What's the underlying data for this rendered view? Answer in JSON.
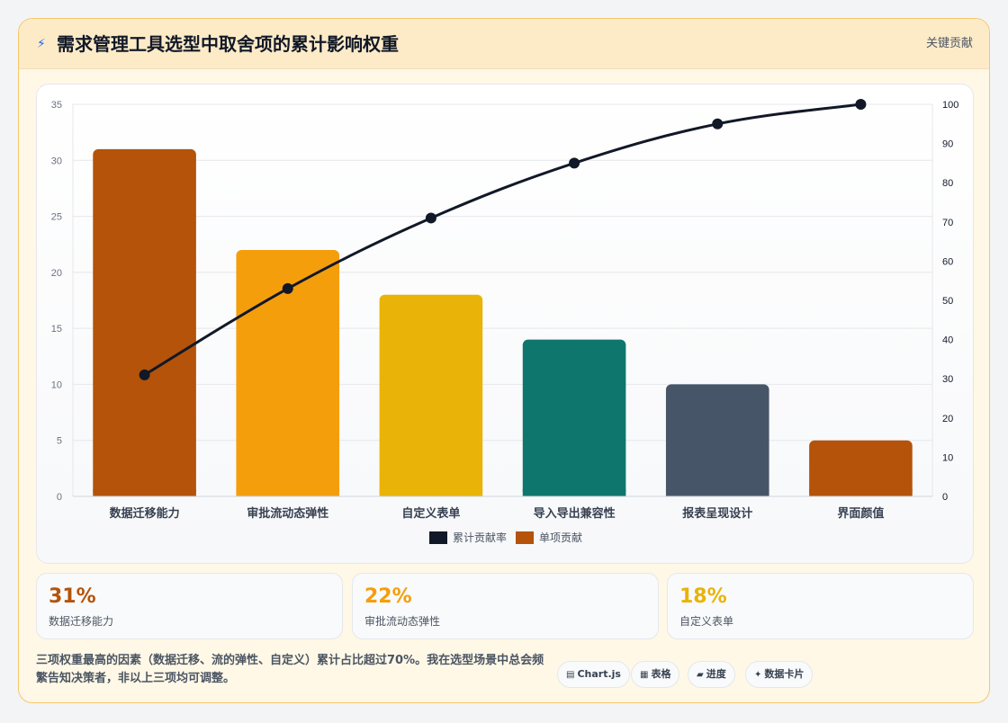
{
  "header": {
    "icon": "lightning-icon",
    "title": "需求管理工具选型中取舍项的累计影响权重",
    "tag": "关键贡献"
  },
  "chart_data": {
    "type": "bar",
    "categories": [
      "数据迁移能力",
      "审批流动态弹性",
      "自定义表单",
      "导入导出兼容性",
      "报表呈现设计",
      "界面颜值"
    ],
    "series": [
      {
        "name": "单项贡献",
        "type": "bar",
        "axis": "left",
        "values": [
          31,
          22,
          18,
          14,
          10,
          5
        ],
        "colors": [
          "#b45309",
          "#f59e0b",
          "#eab308",
          "#0f766e",
          "#475569",
          "#b45309"
        ]
      },
      {
        "name": "累计贡献率",
        "type": "line",
        "axis": "right",
        "values": [
          31,
          53,
          71,
          85,
          95,
          100
        ],
        "color": "#111827"
      }
    ],
    "ylim": [
      0,
      35
    ],
    "yticks": [
      0,
      5,
      10,
      15,
      20,
      25,
      30,
      35
    ],
    "y2lim": [
      0,
      100
    ],
    "y2ticks": [
      0,
      10,
      20,
      30,
      40,
      50,
      60,
      70,
      80,
      90,
      100
    ],
    "legend": [
      "累计贡献率",
      "单项贡献"
    ],
    "legend_position": "bottom",
    "grid": true
  },
  "stats": [
    {
      "value": "31%",
      "label": "数据迁移能力",
      "color": "#b45309"
    },
    {
      "value": "22%",
      "label": "审批流动态弹性",
      "color": "#f59e0b"
    },
    {
      "value": "18%",
      "label": "自定义表单",
      "color": "#eab308"
    }
  ],
  "note": "三项权重最高的因素（数据迁移、流的弹性、自定义）累计占比超过70%。我在选型场景中总会频繁告知决策者，非以上三项均可调整。",
  "chips": [
    {
      "icon": "chart-icon",
      "glyph": "▤",
      "label": "Chart.js"
    },
    {
      "icon": "table-icon",
      "glyph": "▦",
      "label": "表格"
    },
    {
      "icon": "progress-icon",
      "glyph": "▰",
      "label": "进度"
    },
    {
      "icon": "sparkle-icon",
      "glyph": "✦",
      "label": "数据卡片"
    }
  ]
}
